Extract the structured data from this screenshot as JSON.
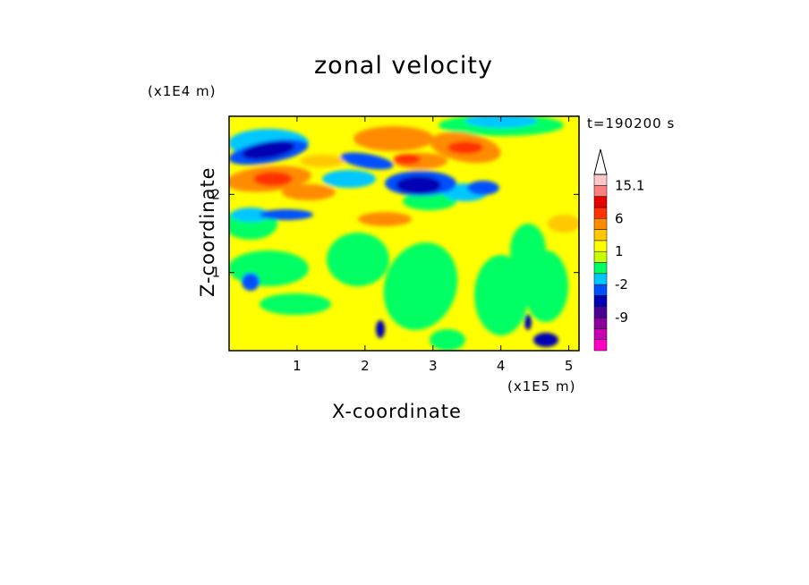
{
  "chart_data": {
    "type": "heatmap",
    "title": "zonal velocity",
    "xlabel": "X-coordinate",
    "ylabel": "Z-coordinate",
    "x_unit": "(x1E5 m)",
    "y_unit": "(x1E4 m)",
    "time_label": "t=190200 s",
    "xlim": [
      0,
      5.15
    ],
    "ylim": [
      0,
      3.0
    ],
    "x_ticks": [
      1,
      2,
      3,
      4,
      5
    ],
    "y_ticks": [
      1,
      2
    ],
    "colorbar": {
      "labels": [
        "15.1",
        "6",
        "1",
        "-2",
        "-9"
      ],
      "label_positions": [
        15.1,
        6,
        1,
        -2,
        -9
      ],
      "levels": [
        -15,
        -12,
        -9,
        -6,
        -4,
        -2,
        -1,
        0,
        1,
        2,
        4,
        6,
        9,
        12,
        15.1
      ],
      "colors": [
        "#ff00c8",
        "#c800b4",
        "#8c00a0",
        "#4b0096",
        "#0000b4",
        "#0050ff",
        "#00c8ff",
        "#00ff64",
        "#c8ff00",
        "#ffff00",
        "#ffc800",
        "#ff8c00",
        "#ff3200",
        "#e60000",
        "#ff8080",
        "#ffc8c8"
      ],
      "extend": "max"
    }
  }
}
